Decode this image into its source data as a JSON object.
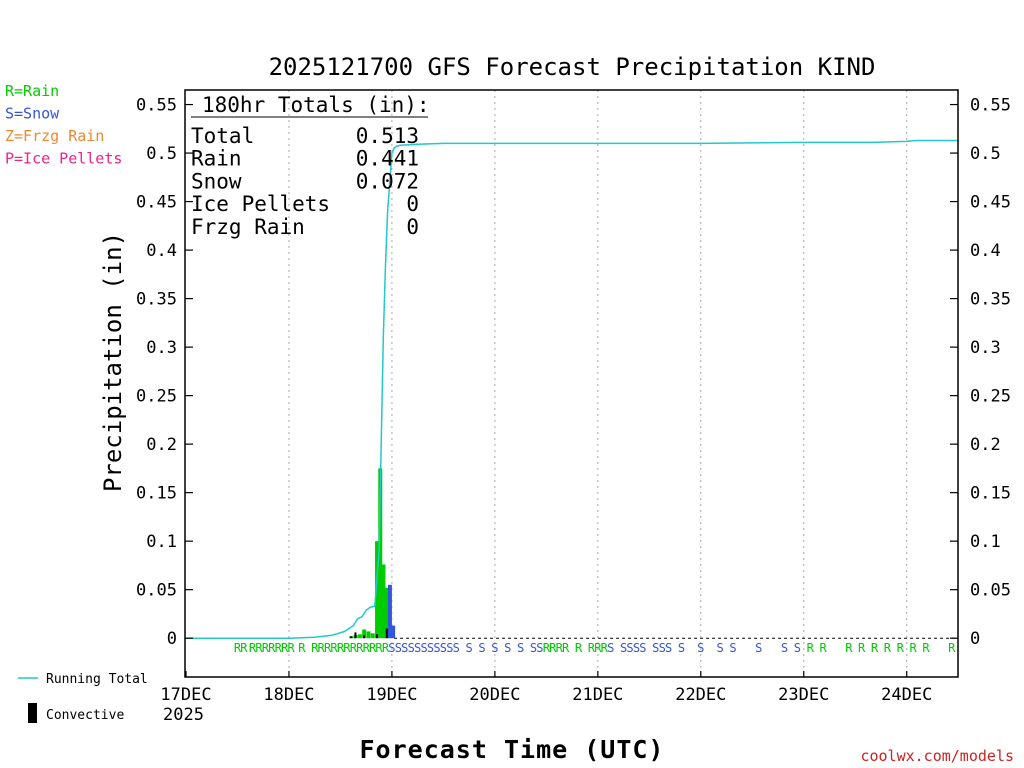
{
  "colors": {
    "rain": "#00cc00",
    "snow": "#3355dd",
    "freezing_rain": "#ee8833",
    "ice_pellets": "#ee2288",
    "running_total": "#22c8cc",
    "convective": "#000000",
    "credit": "#cc2222"
  },
  "legend_types": [
    {
      "label": "R=Rain",
      "color_key": "rain"
    },
    {
      "label": "S=Snow",
      "color_key": "snow"
    },
    {
      "label": "Z=Frzg Rain",
      "color_key": "freezing_rain"
    },
    {
      "label": "P=Ice Pellets",
      "color_key": "ice_pellets"
    }
  ],
  "legend_series": {
    "running_total": "Running Total",
    "convective": "Convective"
  },
  "totals_box": {
    "header": "180hr Totals (in):",
    "rows": [
      {
        "label": "Total",
        "value": "0.513"
      },
      {
        "label": "Rain",
        "value": "0.441"
      },
      {
        "label": "Snow",
        "value": "0.072"
      },
      {
        "label": "Ice Pellets",
        "value": "0"
      },
      {
        "label": "Frzg Rain",
        "value": "0"
      }
    ]
  },
  "credit": "coolwx.com/models",
  "chart_data": {
    "type": "bar",
    "title": "2025121700 GFS Forecast Precipitation KIND",
    "xlabel": "Forecast Time (UTC)",
    "ylabel": "Precipitation (in)",
    "ylim": [
      -0.04,
      0.565
    ],
    "xlim_hours": [
      0,
      180
    ],
    "yticks": [
      0,
      0.05,
      0.1,
      0.15,
      0.2,
      0.25,
      0.3,
      0.35,
      0.4,
      0.45,
      0.5,
      0.55
    ],
    "ytick_labels": [
      "0",
      "0.05",
      "0.1",
      "0.15",
      "0.2",
      "0.25",
      "0.3",
      "0.35",
      "0.4",
      "0.45",
      "0.5",
      "0.55"
    ],
    "xticks": [
      {
        "hour": 0,
        "label": "17DEC",
        "sub": "2025"
      },
      {
        "hour": 24,
        "label": "18DEC"
      },
      {
        "hour": 48,
        "label": "19DEC"
      },
      {
        "hour": 72,
        "label": "20DEC"
      },
      {
        "hour": 96,
        "label": "21DEC"
      },
      {
        "hour": 120,
        "label": "22DEC"
      },
      {
        "hour": 144,
        "label": "23DEC"
      },
      {
        "hour": 168,
        "label": "24DEC"
      }
    ],
    "bars": [
      {
        "hour": 39,
        "value": 0.002,
        "type": "rain"
      },
      {
        "hour": 40,
        "value": 0.003,
        "type": "rain"
      },
      {
        "hour": 41,
        "value": 0.004,
        "type": "rain"
      },
      {
        "hour": 42,
        "value": 0.009,
        "type": "rain"
      },
      {
        "hour": 43,
        "value": 0.007,
        "type": "rain"
      },
      {
        "hour": 44,
        "value": 0.005,
        "type": "rain"
      },
      {
        "hour": 45,
        "value": 0.1,
        "type": "rain"
      },
      {
        "hour": 45.75,
        "value": 0.175,
        "type": "rain"
      },
      {
        "hour": 46.5,
        "value": 0.076,
        "type": "rain"
      },
      {
        "hour": 47.25,
        "value": 0.052,
        "type": "rain"
      },
      {
        "hour": 48,
        "value": 0.055,
        "type": "snow"
      },
      {
        "hour": 48.75,
        "value": 0.013,
        "type": "snow"
      }
    ],
    "convective_bars": [
      {
        "hour": 38.5,
        "value": 0.002
      },
      {
        "hour": 39.5,
        "value": 0.006
      },
      {
        "hour": 41.5,
        "value": 0.003
      },
      {
        "hour": 44.5,
        "value": 0.004
      },
      {
        "hour": 46.8,
        "value": 0.01
      }
    ],
    "running_total": [
      [
        0,
        0
      ],
      [
        24,
        0.0
      ],
      [
        30,
        0.001
      ],
      [
        34,
        0.003
      ],
      [
        37,
        0.007
      ],
      [
        39,
        0.013
      ],
      [
        40,
        0.02
      ],
      [
        41,
        0.022
      ],
      [
        42,
        0.029
      ],
      [
        43,
        0.032
      ],
      [
        44,
        0.033
      ],
      [
        45,
        0.09
      ],
      [
        45.5,
        0.2
      ],
      [
        46,
        0.31
      ],
      [
        46.5,
        0.385
      ],
      [
        47,
        0.44
      ],
      [
        47.5,
        0.47
      ],
      [
        48,
        0.5
      ],
      [
        48.5,
        0.505
      ],
      [
        49,
        0.507
      ],
      [
        50,
        0.508
      ],
      [
        54,
        0.509
      ],
      [
        60,
        0.51
      ],
      [
        96,
        0.51
      ],
      [
        120,
        0.51
      ],
      [
        144,
        0.511
      ],
      [
        160,
        0.511
      ],
      [
        168,
        0.512
      ],
      [
        170,
        0.513
      ],
      [
        180,
        0.513
      ]
    ],
    "ptype_markers": [
      {
        "hour": 12,
        "type": "rain",
        "text": "R"
      },
      {
        "hour": 13.5,
        "type": "rain",
        "text": "R"
      },
      {
        "hour": 15.5,
        "type": "rain",
        "text": "R"
      },
      {
        "hour": 17,
        "type": "rain",
        "text": "R"
      },
      {
        "hour": 18.5,
        "type": "rain",
        "text": "R"
      },
      {
        "hour": 20,
        "type": "rain",
        "text": "R"
      },
      {
        "hour": 21.5,
        "type": "rain",
        "text": "R"
      },
      {
        "hour": 23,
        "type": "rain",
        "text": "R"
      },
      {
        "hour": 24.5,
        "type": "rain",
        "text": "R"
      },
      {
        "hour": 27,
        "type": "rain",
        "text": "R"
      },
      {
        "hour": 30,
        "type": "rain",
        "text": "R"
      },
      {
        "hour": 31.5,
        "type": "rain",
        "text": "R"
      },
      {
        "hour": 33,
        "type": "rain",
        "text": "R"
      },
      {
        "hour": 34.5,
        "type": "rain",
        "text": "R"
      },
      {
        "hour": 36,
        "type": "rain",
        "text": "R"
      },
      {
        "hour": 37.5,
        "type": "rain",
        "text": "R"
      },
      {
        "hour": 39,
        "type": "rain",
        "text": "R"
      },
      {
        "hour": 40.5,
        "type": "rain",
        "text": "R"
      },
      {
        "hour": 42,
        "type": "rain",
        "text": "R"
      },
      {
        "hour": 43.5,
        "type": "rain",
        "text": "R"
      },
      {
        "hour": 45,
        "type": "rain",
        "text": "R"
      },
      {
        "hour": 46.5,
        "type": "rain",
        "text": "R"
      },
      {
        "hour": 48,
        "type": "snow",
        "text": "S"
      },
      {
        "hour": 49.5,
        "type": "snow",
        "text": "S"
      },
      {
        "hour": 51,
        "type": "snow",
        "text": "S"
      },
      {
        "hour": 52.5,
        "type": "snow",
        "text": "S"
      },
      {
        "hour": 54,
        "type": "snow",
        "text": "S"
      },
      {
        "hour": 55.5,
        "type": "snow",
        "text": "S"
      },
      {
        "hour": 57,
        "type": "snow",
        "text": "S"
      },
      {
        "hour": 58.5,
        "type": "snow",
        "text": "S"
      },
      {
        "hour": 60,
        "type": "snow",
        "text": "S"
      },
      {
        "hour": 61.5,
        "type": "snow",
        "text": "S"
      },
      {
        "hour": 63,
        "type": "snow",
        "text": "S"
      },
      {
        "hour": 66,
        "type": "snow",
        "text": "S"
      },
      {
        "hour": 69,
        "type": "snow",
        "text": "S"
      },
      {
        "hour": 72,
        "type": "snow",
        "text": "S"
      },
      {
        "hour": 75,
        "type": "snow",
        "text": "S"
      },
      {
        "hour": 78,
        "type": "snow",
        "text": "S"
      },
      {
        "hour": 81,
        "type": "snow",
        "text": "S"
      },
      {
        "hour": 82.5,
        "type": "snow",
        "text": "S"
      },
      {
        "hour": 84,
        "type": "rain",
        "text": "R"
      },
      {
        "hour": 85.5,
        "type": "rain",
        "text": "R"
      },
      {
        "hour": 87,
        "type": "rain",
        "text": "R"
      },
      {
        "hour": 88.5,
        "type": "rain",
        "text": "R"
      },
      {
        "hour": 91.5,
        "type": "rain",
        "text": "R"
      },
      {
        "hour": 94.5,
        "type": "rain",
        "text": "R"
      },
      {
        "hour": 96,
        "type": "rain",
        "text": "R"
      },
      {
        "hour": 97.5,
        "type": "rain",
        "text": "R"
      },
      {
        "hour": 99,
        "type": "snow",
        "text": "S"
      },
      {
        "hour": 102,
        "type": "snow",
        "text": "S"
      },
      {
        "hour": 103.5,
        "type": "snow",
        "text": "S"
      },
      {
        "hour": 105,
        "type": "snow",
        "text": "S"
      },
      {
        "hour": 106.5,
        "type": "snow",
        "text": "S"
      },
      {
        "hour": 109.5,
        "type": "snow",
        "text": "S"
      },
      {
        "hour": 111,
        "type": "snow",
        "text": "S"
      },
      {
        "hour": 112.5,
        "type": "snow",
        "text": "S"
      },
      {
        "hour": 115.5,
        "type": "snow",
        "text": "S"
      },
      {
        "hour": 120,
        "type": "snow",
        "text": "S"
      },
      {
        "hour": 124.5,
        "type": "snow",
        "text": "S"
      },
      {
        "hour": 127.5,
        "type": "snow",
        "text": "S"
      },
      {
        "hour": 133.5,
        "type": "snow",
        "text": "S"
      },
      {
        "hour": 139.5,
        "type": "snow",
        "text": "S"
      },
      {
        "hour": 142.5,
        "type": "snow",
        "text": "S"
      },
      {
        "hour": 145.5,
        "type": "rain",
        "text": "R"
      },
      {
        "hour": 148.5,
        "type": "rain",
        "text": "R"
      },
      {
        "hour": 154.5,
        "type": "rain",
        "text": "R"
      },
      {
        "hour": 157.5,
        "type": "rain",
        "text": "R"
      },
      {
        "hour": 160.5,
        "type": "rain",
        "text": "R"
      },
      {
        "hour": 163.5,
        "type": "rain",
        "text": "R"
      },
      {
        "hour": 166.5,
        "type": "rain",
        "text": "R"
      },
      {
        "hour": 169.5,
        "type": "rain",
        "text": "R"
      },
      {
        "hour": 172.5,
        "type": "rain",
        "text": "R"
      },
      {
        "hour": 178.5,
        "type": "rain",
        "text": "R"
      }
    ]
  }
}
